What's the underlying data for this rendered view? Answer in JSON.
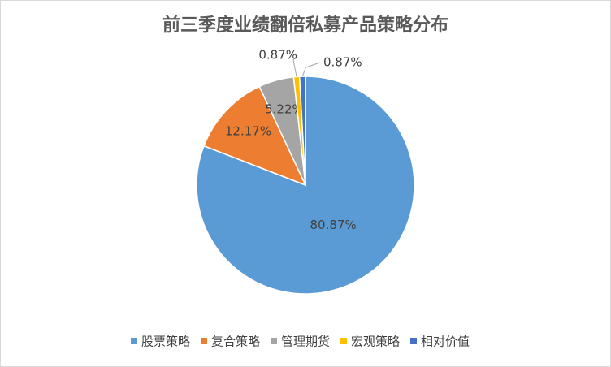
{
  "chart_data": {
    "type": "pie",
    "title": "前三季度业绩翻倍私募产品策略分布",
    "categories": [
      "股票策略",
      "复合策略",
      "管理期货",
      "宏观策略",
      "相对价值"
    ],
    "values": [
      80.87,
      12.17,
      5.22,
      0.87,
      0.87
    ],
    "value_labels": [
      "80.87%",
      "12.17%",
      "5.22%",
      "0.87%",
      "0.87%"
    ],
    "colors": [
      "#5b9bd5",
      "#ed7d31",
      "#a5a5a5",
      "#ffc000",
      "#4472c4"
    ],
    "legend": "bottom"
  }
}
